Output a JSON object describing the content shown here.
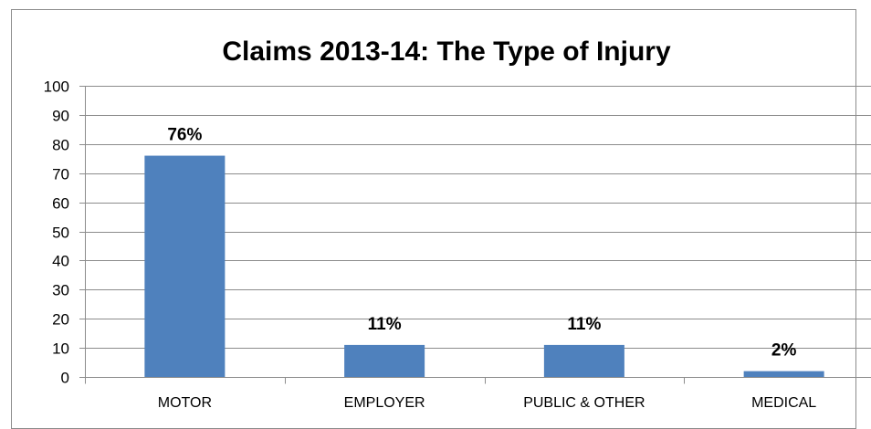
{
  "chart_data": {
    "type": "bar",
    "title": "Claims 2013-14: The Type of Injury",
    "categories": [
      "MOTOR",
      "EMPLOYER",
      "PUBLIC & OTHER",
      "MEDICAL"
    ],
    "values": [
      76,
      11,
      11,
      2
    ],
    "data_labels": [
      "76%",
      "11%",
      "11%",
      "2%"
    ],
    "xlabel": "",
    "ylabel": "",
    "ylim": [
      0,
      100
    ],
    "yticks": [
      "0",
      "10",
      "20",
      "30",
      "40",
      "50",
      "60",
      "70",
      "80",
      "90",
      "100"
    ],
    "grid": true,
    "legend": "none",
    "colors": {
      "bar": "#4f81bd",
      "grid": "#8c8c8c",
      "axis": "#8c8c8c"
    }
  }
}
